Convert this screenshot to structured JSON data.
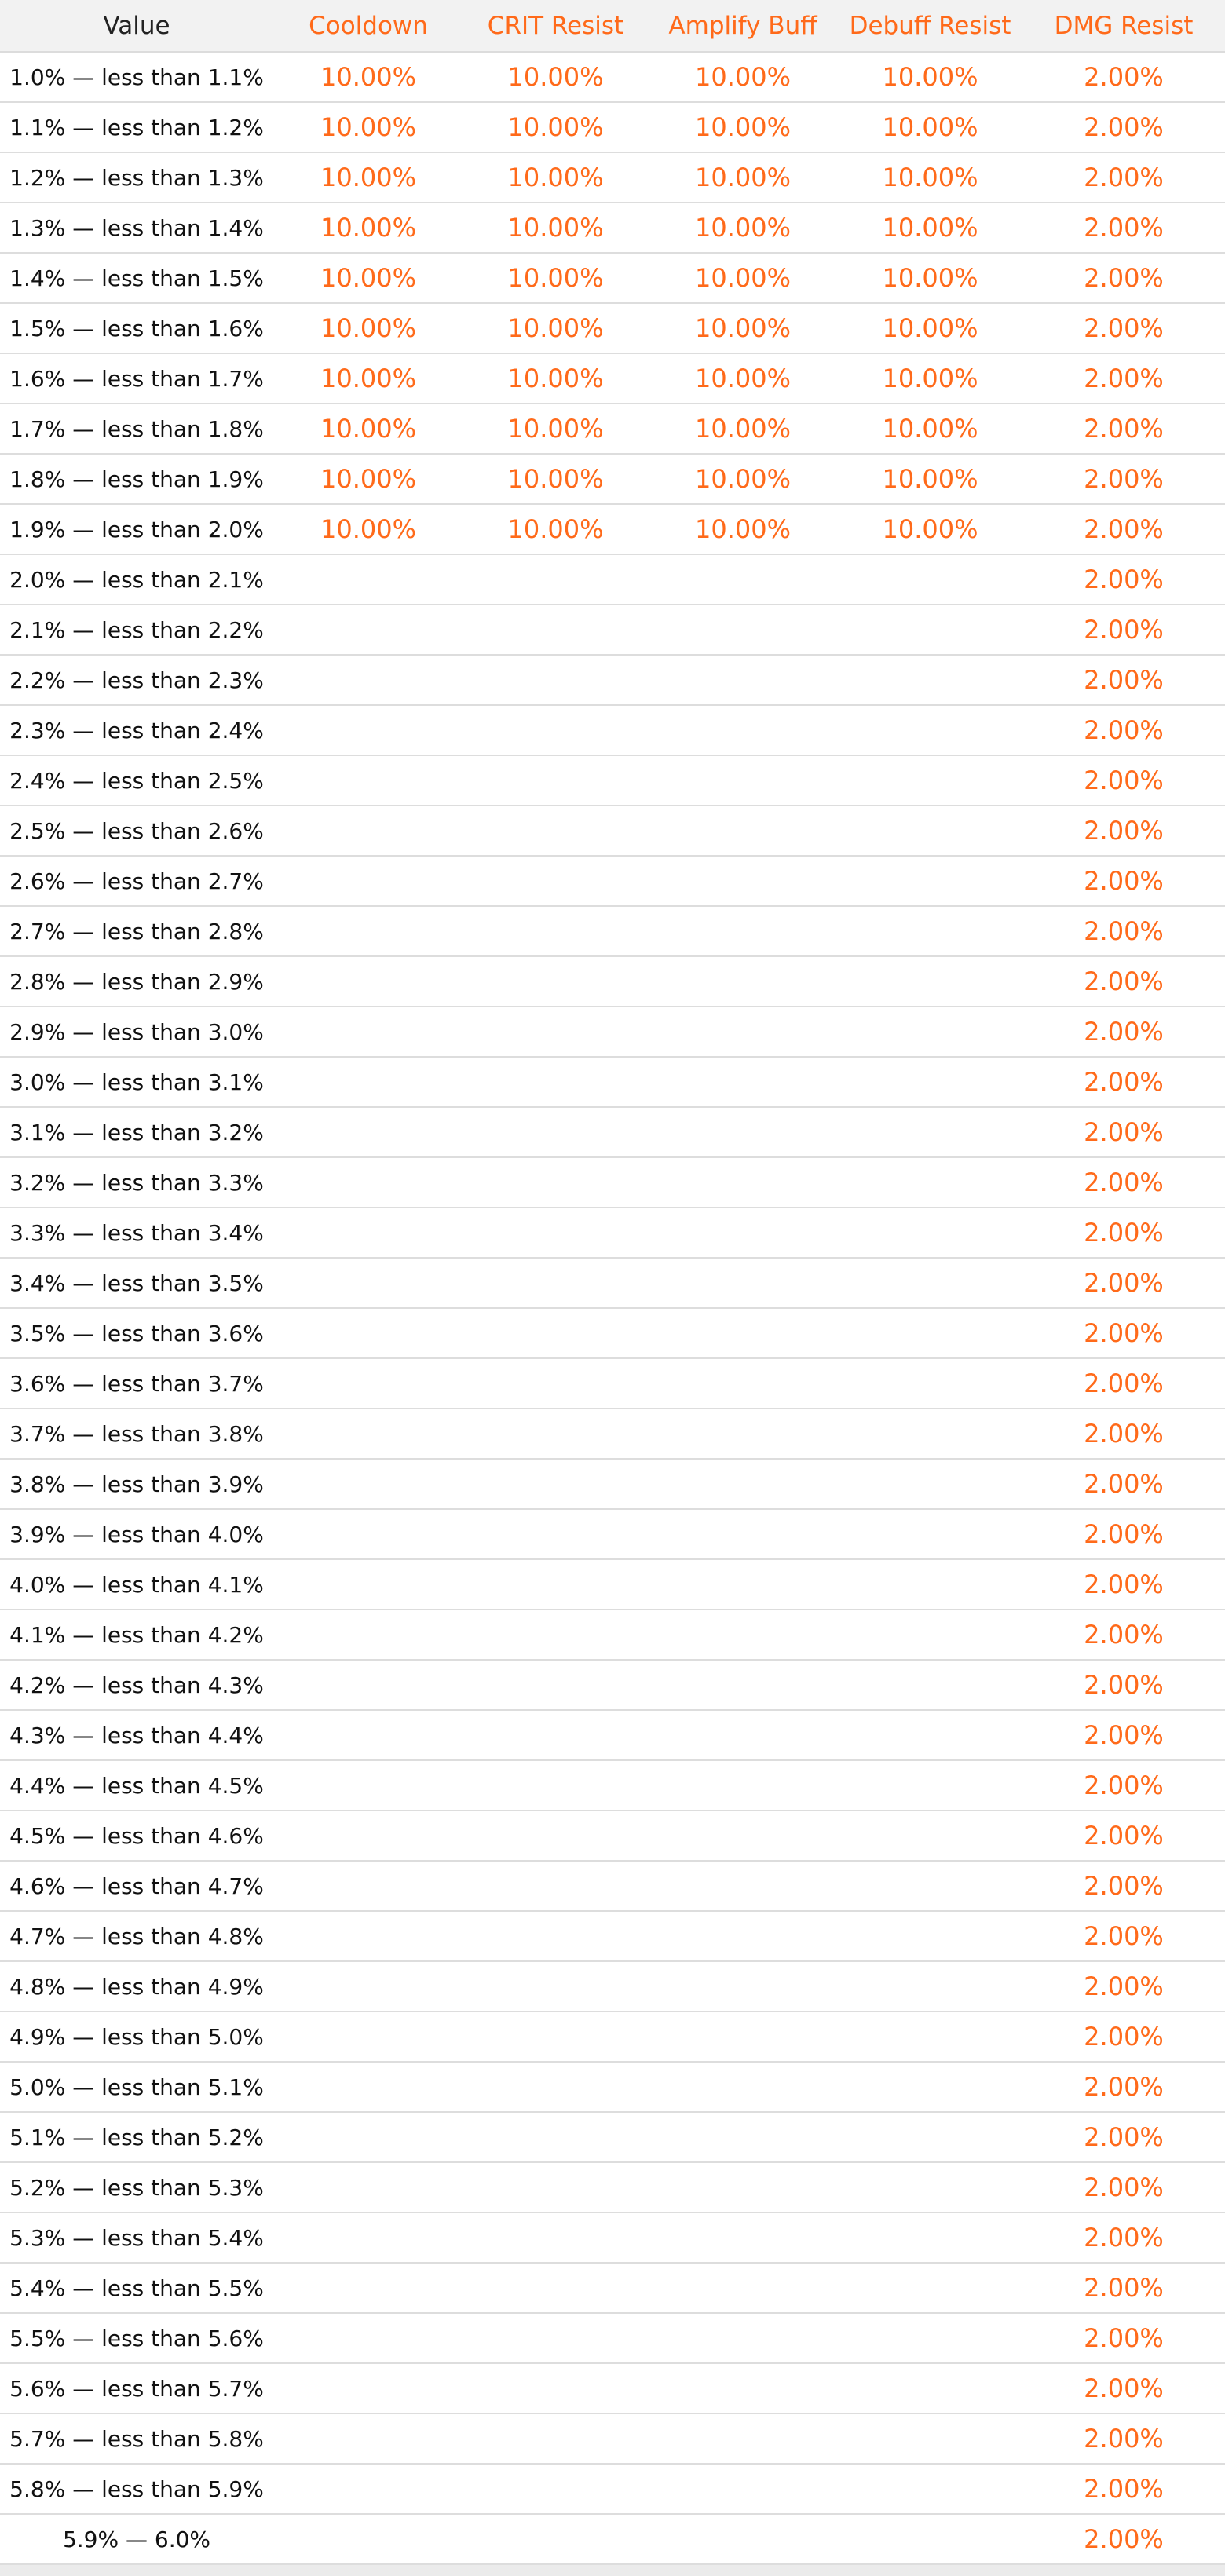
{
  "accent_color": "#ff6a1a",
  "columns": [
    "Value",
    "Cooldown",
    "CRIT Resist",
    "Amplify Buff",
    "Debuff Resist",
    "DMG Resist"
  ],
  "rows": [
    {
      "range": "1.0% — less than 1.1%",
      "cooldown": "10.00%",
      "crit_resist": "10.00%",
      "amplify_buff": "10.00%",
      "debuff_resist": "10.00%",
      "dmg_resist": "2.00%"
    },
    {
      "range": "1.1% — less than 1.2%",
      "cooldown": "10.00%",
      "crit_resist": "10.00%",
      "amplify_buff": "10.00%",
      "debuff_resist": "10.00%",
      "dmg_resist": "2.00%"
    },
    {
      "range": "1.2% — less than 1.3%",
      "cooldown": "10.00%",
      "crit_resist": "10.00%",
      "amplify_buff": "10.00%",
      "debuff_resist": "10.00%",
      "dmg_resist": "2.00%"
    },
    {
      "range": "1.3% — less than 1.4%",
      "cooldown": "10.00%",
      "crit_resist": "10.00%",
      "amplify_buff": "10.00%",
      "debuff_resist": "10.00%",
      "dmg_resist": "2.00%"
    },
    {
      "range": "1.4% — less than 1.5%",
      "cooldown": "10.00%",
      "crit_resist": "10.00%",
      "amplify_buff": "10.00%",
      "debuff_resist": "10.00%",
      "dmg_resist": "2.00%"
    },
    {
      "range": "1.5% — less than 1.6%",
      "cooldown": "10.00%",
      "crit_resist": "10.00%",
      "amplify_buff": "10.00%",
      "debuff_resist": "10.00%",
      "dmg_resist": "2.00%"
    },
    {
      "range": "1.6% — less than 1.7%",
      "cooldown": "10.00%",
      "crit_resist": "10.00%",
      "amplify_buff": "10.00%",
      "debuff_resist": "10.00%",
      "dmg_resist": "2.00%"
    },
    {
      "range": "1.7% — less than 1.8%",
      "cooldown": "10.00%",
      "crit_resist": "10.00%",
      "amplify_buff": "10.00%",
      "debuff_resist": "10.00%",
      "dmg_resist": "2.00%"
    },
    {
      "range": "1.8% — less than 1.9%",
      "cooldown": "10.00%",
      "crit_resist": "10.00%",
      "amplify_buff": "10.00%",
      "debuff_resist": "10.00%",
      "dmg_resist": "2.00%"
    },
    {
      "range": "1.9% — less than 2.0%",
      "cooldown": "10.00%",
      "crit_resist": "10.00%",
      "amplify_buff": "10.00%",
      "debuff_resist": "10.00%",
      "dmg_resist": "2.00%"
    },
    {
      "range": "2.0% — less than 2.1%",
      "cooldown": "",
      "crit_resist": "",
      "amplify_buff": "",
      "debuff_resist": "",
      "dmg_resist": "2.00%"
    },
    {
      "range": "2.1% — less than 2.2%",
      "cooldown": "",
      "crit_resist": "",
      "amplify_buff": "",
      "debuff_resist": "",
      "dmg_resist": "2.00%"
    },
    {
      "range": "2.2% — less than 2.3%",
      "cooldown": "",
      "crit_resist": "",
      "amplify_buff": "",
      "debuff_resist": "",
      "dmg_resist": "2.00%"
    },
    {
      "range": "2.3% — less than 2.4%",
      "cooldown": "",
      "crit_resist": "",
      "amplify_buff": "",
      "debuff_resist": "",
      "dmg_resist": "2.00%"
    },
    {
      "range": "2.4% — less than 2.5%",
      "cooldown": "",
      "crit_resist": "",
      "amplify_buff": "",
      "debuff_resist": "",
      "dmg_resist": "2.00%"
    },
    {
      "range": "2.5% — less than 2.6%",
      "cooldown": "",
      "crit_resist": "",
      "amplify_buff": "",
      "debuff_resist": "",
      "dmg_resist": "2.00%"
    },
    {
      "range": "2.6% — less than 2.7%",
      "cooldown": "",
      "crit_resist": "",
      "amplify_buff": "",
      "debuff_resist": "",
      "dmg_resist": "2.00%"
    },
    {
      "range": "2.7% — less than 2.8%",
      "cooldown": "",
      "crit_resist": "",
      "amplify_buff": "",
      "debuff_resist": "",
      "dmg_resist": "2.00%"
    },
    {
      "range": "2.8% — less than 2.9%",
      "cooldown": "",
      "crit_resist": "",
      "amplify_buff": "",
      "debuff_resist": "",
      "dmg_resist": "2.00%"
    },
    {
      "range": "2.9% — less than 3.0%",
      "cooldown": "",
      "crit_resist": "",
      "amplify_buff": "",
      "debuff_resist": "",
      "dmg_resist": "2.00%"
    },
    {
      "range": "3.0% — less than 3.1%",
      "cooldown": "",
      "crit_resist": "",
      "amplify_buff": "",
      "debuff_resist": "",
      "dmg_resist": "2.00%"
    },
    {
      "range": "3.1% — less than 3.2%",
      "cooldown": "",
      "crit_resist": "",
      "amplify_buff": "",
      "debuff_resist": "",
      "dmg_resist": "2.00%"
    },
    {
      "range": "3.2% — less than 3.3%",
      "cooldown": "",
      "crit_resist": "",
      "amplify_buff": "",
      "debuff_resist": "",
      "dmg_resist": "2.00%"
    },
    {
      "range": "3.3% — less than 3.4%",
      "cooldown": "",
      "crit_resist": "",
      "amplify_buff": "",
      "debuff_resist": "",
      "dmg_resist": "2.00%"
    },
    {
      "range": "3.4% — less than 3.5%",
      "cooldown": "",
      "crit_resist": "",
      "amplify_buff": "",
      "debuff_resist": "",
      "dmg_resist": "2.00%"
    },
    {
      "range": "3.5% — less than 3.6%",
      "cooldown": "",
      "crit_resist": "",
      "amplify_buff": "",
      "debuff_resist": "",
      "dmg_resist": "2.00%"
    },
    {
      "range": "3.6% — less than 3.7%",
      "cooldown": "",
      "crit_resist": "",
      "amplify_buff": "",
      "debuff_resist": "",
      "dmg_resist": "2.00%"
    },
    {
      "range": "3.7% — less than 3.8%",
      "cooldown": "",
      "crit_resist": "",
      "amplify_buff": "",
      "debuff_resist": "",
      "dmg_resist": "2.00%"
    },
    {
      "range": "3.8% — less than 3.9%",
      "cooldown": "",
      "crit_resist": "",
      "amplify_buff": "",
      "debuff_resist": "",
      "dmg_resist": "2.00%"
    },
    {
      "range": "3.9% — less than 4.0%",
      "cooldown": "",
      "crit_resist": "",
      "amplify_buff": "",
      "debuff_resist": "",
      "dmg_resist": "2.00%"
    },
    {
      "range": "4.0% — less than 4.1%",
      "cooldown": "",
      "crit_resist": "",
      "amplify_buff": "",
      "debuff_resist": "",
      "dmg_resist": "2.00%"
    },
    {
      "range": "4.1% — less than 4.2%",
      "cooldown": "",
      "crit_resist": "",
      "amplify_buff": "",
      "debuff_resist": "",
      "dmg_resist": "2.00%"
    },
    {
      "range": "4.2% — less than 4.3%",
      "cooldown": "",
      "crit_resist": "",
      "amplify_buff": "",
      "debuff_resist": "",
      "dmg_resist": "2.00%"
    },
    {
      "range": "4.3% — less than 4.4%",
      "cooldown": "",
      "crit_resist": "",
      "amplify_buff": "",
      "debuff_resist": "",
      "dmg_resist": "2.00%"
    },
    {
      "range": "4.4% — less than 4.5%",
      "cooldown": "",
      "crit_resist": "",
      "amplify_buff": "",
      "debuff_resist": "",
      "dmg_resist": "2.00%"
    },
    {
      "range": "4.5% — less than 4.6%",
      "cooldown": "",
      "crit_resist": "",
      "amplify_buff": "",
      "debuff_resist": "",
      "dmg_resist": "2.00%"
    },
    {
      "range": "4.6% — less than 4.7%",
      "cooldown": "",
      "crit_resist": "",
      "amplify_buff": "",
      "debuff_resist": "",
      "dmg_resist": "2.00%"
    },
    {
      "range": "4.7% — less than 4.8%",
      "cooldown": "",
      "crit_resist": "",
      "amplify_buff": "",
      "debuff_resist": "",
      "dmg_resist": "2.00%"
    },
    {
      "range": "4.8% — less than 4.9%",
      "cooldown": "",
      "crit_resist": "",
      "amplify_buff": "",
      "debuff_resist": "",
      "dmg_resist": "2.00%"
    },
    {
      "range": "4.9% — less than 5.0%",
      "cooldown": "",
      "crit_resist": "",
      "amplify_buff": "",
      "debuff_resist": "",
      "dmg_resist": "2.00%"
    },
    {
      "range": "5.0% — less than 5.1%",
      "cooldown": "",
      "crit_resist": "",
      "amplify_buff": "",
      "debuff_resist": "",
      "dmg_resist": "2.00%"
    },
    {
      "range": "5.1% — less than 5.2%",
      "cooldown": "",
      "crit_resist": "",
      "amplify_buff": "",
      "debuff_resist": "",
      "dmg_resist": "2.00%"
    },
    {
      "range": "5.2% — less than 5.3%",
      "cooldown": "",
      "crit_resist": "",
      "amplify_buff": "",
      "debuff_resist": "",
      "dmg_resist": "2.00%"
    },
    {
      "range": "5.3% — less than 5.4%",
      "cooldown": "",
      "crit_resist": "",
      "amplify_buff": "",
      "debuff_resist": "",
      "dmg_resist": "2.00%"
    },
    {
      "range": "5.4% — less than 5.5%",
      "cooldown": "",
      "crit_resist": "",
      "amplify_buff": "",
      "debuff_resist": "",
      "dmg_resist": "2.00%"
    },
    {
      "range": "5.5% — less than 5.6%",
      "cooldown": "",
      "crit_resist": "",
      "amplify_buff": "",
      "debuff_resist": "",
      "dmg_resist": "2.00%"
    },
    {
      "range": "5.6% — less than 5.7%",
      "cooldown": "",
      "crit_resist": "",
      "amplify_buff": "",
      "debuff_resist": "",
      "dmg_resist": "2.00%"
    },
    {
      "range": "5.7% — less than 5.8%",
      "cooldown": "",
      "crit_resist": "",
      "amplify_buff": "",
      "debuff_resist": "",
      "dmg_resist": "2.00%"
    },
    {
      "range": "5.8% — less than 5.9%",
      "cooldown": "",
      "crit_resist": "",
      "amplify_buff": "",
      "debuff_resist": "",
      "dmg_resist": "2.00%"
    },
    {
      "range": "5.9% —  6.0%",
      "cooldown": "",
      "crit_resist": "",
      "amplify_buff": "",
      "debuff_resist": "",
      "dmg_resist": "2.00%"
    }
  ]
}
